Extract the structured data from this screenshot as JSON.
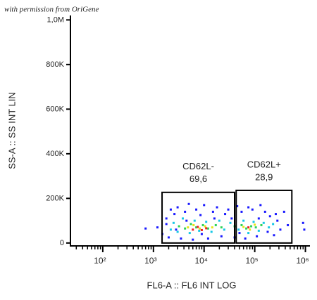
{
  "credit": "with permission from OriGene",
  "chart_data": {
    "type": "scatter",
    "x_label": "FL6-A :: FL6 INT LOG",
    "y_label": "SS-A :: SS INT LIN",
    "xscale": "log",
    "xlim": [
      23,
      1230000
    ],
    "ylim": [
      -13000,
      1020000
    ],
    "xticks": [
      {
        "value": 100,
        "label": "10²"
      },
      {
        "value": 1000,
        "label": "10³"
      },
      {
        "value": 10000,
        "label": "10⁴"
      },
      {
        "value": 100000,
        "label": "10⁵"
      },
      {
        "value": 1000000,
        "label": "10⁶"
      }
    ],
    "xminorticks": [
      30,
      40,
      50,
      60,
      70,
      80,
      90,
      200,
      300,
      400,
      500,
      600,
      700,
      800,
      900,
      2000,
      3000,
      4000,
      5000,
      6000,
      7000,
      8000,
      9000,
      20000,
      30000,
      40000,
      50000,
      60000,
      70000,
      80000,
      90000,
      200000,
      300000,
      400000,
      500000,
      600000,
      700000,
      800000,
      900000
    ],
    "yticks": [
      0,
      {
        "value": 200000,
        "label": "200K"
      },
      {
        "value": 400000,
        "label": "400K"
      },
      {
        "value": 600000,
        "label": "600K"
      },
      {
        "value": 800000,
        "label": "800K"
      },
      {
        "value": 1000000,
        "label": "1,0M"
      }
    ],
    "series": [
      {
        "color": "#1a1aff",
        "x": [
          1200,
          1500,
          1800,
          2200,
          2000,
          2600,
          3000,
          3500,
          4200,
          5000,
          6000,
          7000,
          8500,
          10000,
          12000,
          15000,
          18000,
          22000,
          26000,
          30000,
          35000,
          40000,
          45000,
          55000,
          65000,
          75000,
          90000,
          110000,
          130000,
          160000,
          200000,
          240000,
          280000,
          320000,
          380000,
          450000,
          900000,
          950000,
          2800,
          4500,
          9000,
          16000,
          50000,
          120000,
          180000,
          260000,
          1800,
          700
        ],
        "values": [
          70000,
          40000,
          110000,
          150000,
          25000,
          130000,
          160000,
          20000,
          140000,
          175000,
          15000,
          150000,
          125000,
          170000,
          20000,
          140000,
          160000,
          30000,
          130000,
          150000,
          110000,
          25000,
          165000,
          140000,
          20000,
          160000,
          150000,
          30000,
          170000,
          140000,
          120000,
          35000,
          100000,
          60000,
          140000,
          80000,
          90000,
          60000,
          60000,
          100000,
          40000,
          110000,
          45000,
          110000,
          50000,
          130000,
          85000,
          65000
        ]
      },
      {
        "color": "#19c8e6",
        "x": [
          2500,
          3000,
          3800,
          5200,
          6500,
          8000,
          11000,
          14000,
          20000,
          25000,
          33000,
          48000,
          60000,
          75000,
          95000,
          120000,
          150000,
          190000,
          230000,
          2200
        ],
        "values": [
          90000,
          50000,
          110000,
          45000,
          100000,
          55000,
          95000,
          50000,
          100000,
          60000,
          90000,
          60000,
          100000,
          45000,
          95000,
          55000,
          90000,
          70000,
          85000,
          60000
        ]
      },
      {
        "color": "#2fd25a",
        "x": [
          3200,
          4200,
          5500,
          7000,
          9500,
          12000,
          17000,
          22000,
          55000,
          68000,
          85000,
          105000,
          135000,
          40000
        ],
        "values": [
          75000,
          65000,
          85000,
          70000,
          80000,
          65000,
          80000,
          70000,
          80000,
          65000,
          75000,
          70000,
          80000,
          75000
        ]
      },
      {
        "color": "#e6e619",
        "x": [
          4800,
          6200,
          8200,
          10500,
          14500,
          60000,
          80000,
          100000
        ],
        "values": [
          70000,
          80000,
          65000,
          75000,
          70000,
          72000,
          60000,
          82000
        ]
      },
      {
        "color": "#f02020",
        "x": [
          6000,
          7500,
          9000,
          11000,
          75000
        ],
        "values": [
          60000,
          72000,
          58000,
          66000,
          70000
        ]
      }
    ],
    "gates": [
      {
        "name": "CD62L-",
        "percent": "69,6",
        "x": [
          1480,
          40000
        ],
        "y": [
          0,
          227000
        ]
      },
      {
        "name": "CD62L+",
        "percent": "28,9",
        "x": [
          43000,
          540000
        ],
        "y": [
          0,
          236000
        ]
      }
    ]
  }
}
